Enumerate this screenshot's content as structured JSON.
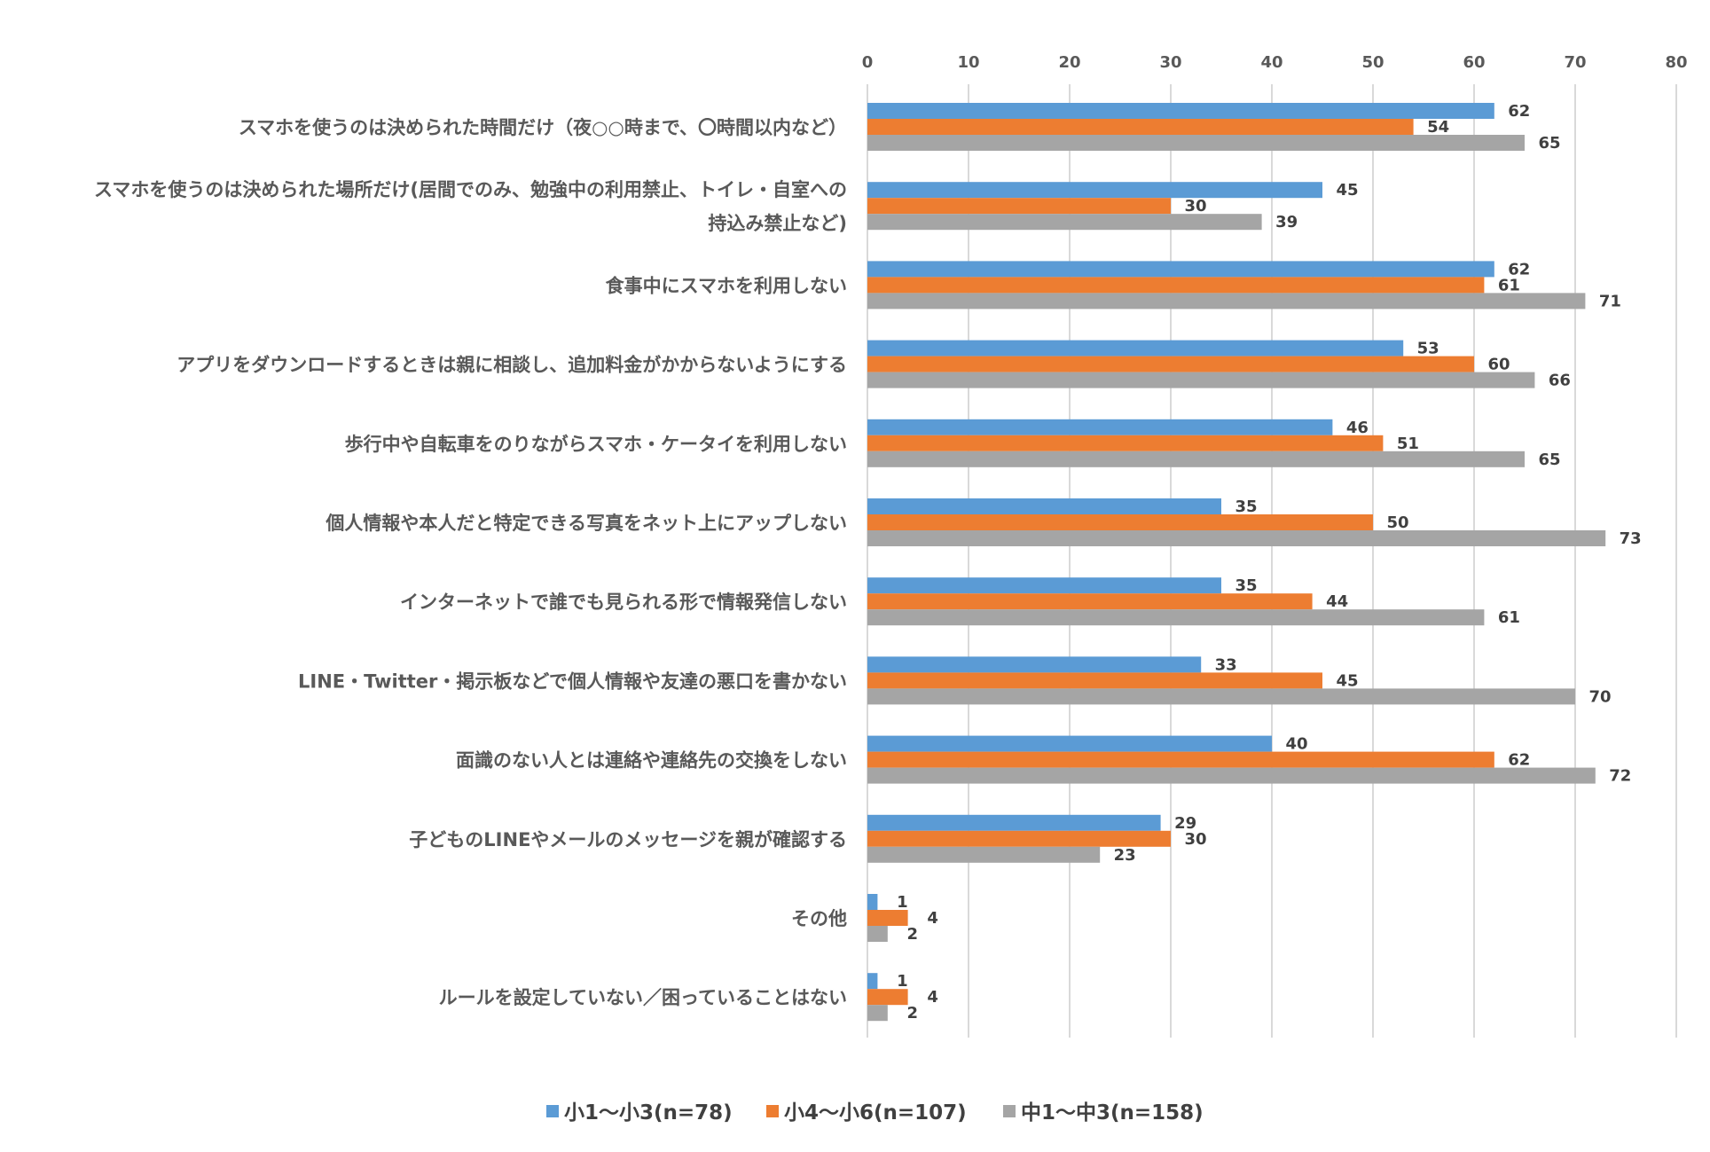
{
  "chart_data": {
    "type": "bar",
    "orientation": "horizontal",
    "categories": [
      [
        "スマホを使うのは決められた時間だけ（夜○○時まで、〇時間以内など）"
      ],
      [
        "スマホを使うのは決められた場所だけ(居間でのみ、勉強中の利用禁止、トイレ・自室への",
        "持込み禁止など)"
      ],
      [
        "食事中にスマホを利用しない"
      ],
      [
        "アプリをダウンロードするときは親に相談し、追加料金がかからないようにする"
      ],
      [
        "歩行中や自転車をのりながらスマホ・ケータイを利用しない"
      ],
      [
        "個人情報や本人だと特定できる写真をネット上にアップしない"
      ],
      [
        "インターネットで誰でも見られる形で情報発信しない"
      ],
      [
        "LINE・Twitter・掲示板などで個人情報や友達の悪口を書かない"
      ],
      [
        "面識のない人とは連絡や連絡先の交換をしない"
      ],
      [
        "子どものLINEやメールのメッセージを親が確認する"
      ],
      [
        "その他"
      ],
      [
        "ルールを設定していない／困っていることはない"
      ]
    ],
    "series": [
      {
        "name": "小1〜小3(n=78)",
        "color": "#5b9bd5",
        "values": [
          62,
          45,
          62,
          53,
          46,
          35,
          35,
          33,
          40,
          29,
          1,
          1
        ]
      },
      {
        "name": "小4〜小6(n=107)",
        "color": "#ed7d31",
        "values": [
          54,
          30,
          61,
          60,
          51,
          50,
          44,
          45,
          62,
          30,
          4,
          4
        ]
      },
      {
        "name": "中1〜中3(n=158)",
        "color": "#a5a5a5",
        "values": [
          65,
          39,
          71,
          66,
          65,
          73,
          61,
          70,
          72,
          23,
          2,
          2
        ]
      }
    ],
    "xlim": [
      0,
      80
    ],
    "ticks": [
      0,
      10,
      20,
      30,
      40,
      50,
      60,
      70,
      80
    ],
    "axis_position": "top",
    "grid": true,
    "legend_position": "bottom"
  }
}
